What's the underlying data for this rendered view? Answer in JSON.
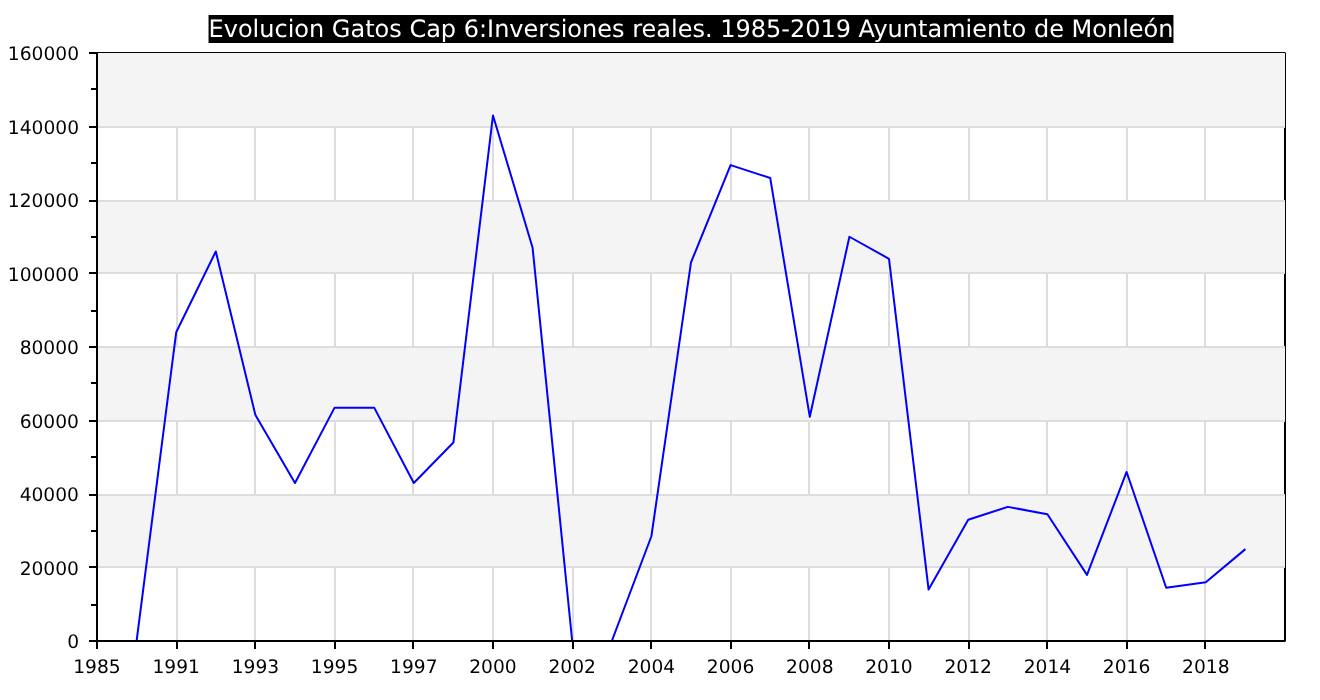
{
  "chart_data": {
    "type": "line",
    "title": "Evolucion Gatos Cap 6:Inversiones reales. 1985-2019 Ayuntamiento de Monleón",
    "categories": [
      "1985",
      null,
      "1991",
      null,
      "1993",
      null,
      "1995",
      null,
      "1997",
      null,
      "2000",
      null,
      "2002",
      null,
      "2004",
      null,
      "2006",
      null,
      "2008",
      null,
      "2010",
      null,
      "2012",
      null,
      "2014",
      null,
      "2016",
      null,
      "2018",
      null
    ],
    "series": [
      {
        "color": "#0000ff",
        "values": [
          null,
          0,
          84000,
          106000,
          61500,
          43000,
          63500,
          63500,
          43000,
          54000,
          143000,
          107000,
          0,
          0,
          28500,
          103000,
          129500,
          126000,
          61000,
          110000,
          104000,
          14000,
          33000,
          36500,
          34500,
          18000,
          46000,
          14500,
          16000,
          25000
        ]
      }
    ],
    "ylim": [
      0,
      160000
    ],
    "yticks": [
      0,
      20000,
      40000,
      60000,
      80000,
      100000,
      120000,
      140000,
      160000
    ],
    "grid": true,
    "marker": "none",
    "line_style": "solid"
  }
}
